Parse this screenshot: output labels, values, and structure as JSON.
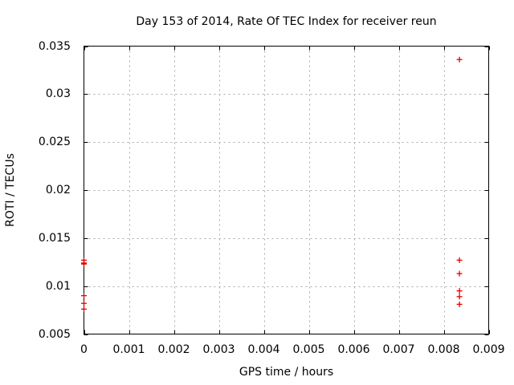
{
  "chart_data": {
    "type": "scatter",
    "title": "Day 153 of 2014, Rate Of TEC Index for receiver reun",
    "xlabel": "GPS time / hours",
    "ylabel": "ROTI / TECUs",
    "xlim": [
      0,
      0.009
    ],
    "ylim": [
      0.005,
      0.035
    ],
    "xtick_values": [
      0,
      0.001,
      0.002,
      0.003,
      0.004,
      0.005,
      0.006,
      0.007,
      0.008,
      0.009
    ],
    "xtick_labels": [
      "0",
      "0.001",
      "0.002",
      "0.003",
      "0.004",
      "0.005",
      "0.006",
      "0.007",
      "0.008",
      "0.009"
    ],
    "ytick_values": [
      0.005,
      0.01,
      0.015,
      0.02,
      0.025,
      0.03,
      0.035
    ],
    "ytick_labels": [
      "0.005",
      "0.01",
      "0.015",
      "0.02",
      "0.025",
      "0.03",
      "0.035"
    ],
    "grid": "dashed",
    "legend_position": "none",
    "series": [
      {
        "name": "ROTI",
        "marker": "plus",
        "color": "#e60000",
        "points": [
          {
            "x": 0,
            "y": 0.0127
          },
          {
            "x": 0,
            "y": 0.0124
          },
          {
            "x": 0,
            "y": 0.0123
          },
          {
            "x": 0,
            "y": 0.009
          },
          {
            "x": 0,
            "y": 0.0082
          },
          {
            "x": 0,
            "y": 0.0076
          },
          {
            "x": 0.00835,
            "y": 0.0336
          },
          {
            "x": 0.00835,
            "y": 0.0127
          },
          {
            "x": 0.00835,
            "y": 0.0113
          },
          {
            "x": 0.00835,
            "y": 0.0095
          },
          {
            "x": 0.00835,
            "y": 0.0089
          },
          {
            "x": 0.00835,
            "y": 0.0081
          }
        ]
      }
    ],
    "colors": {
      "background": "#ffffff",
      "axis": "#000000",
      "grid": "#aaaaaa",
      "text": "#000000"
    }
  }
}
